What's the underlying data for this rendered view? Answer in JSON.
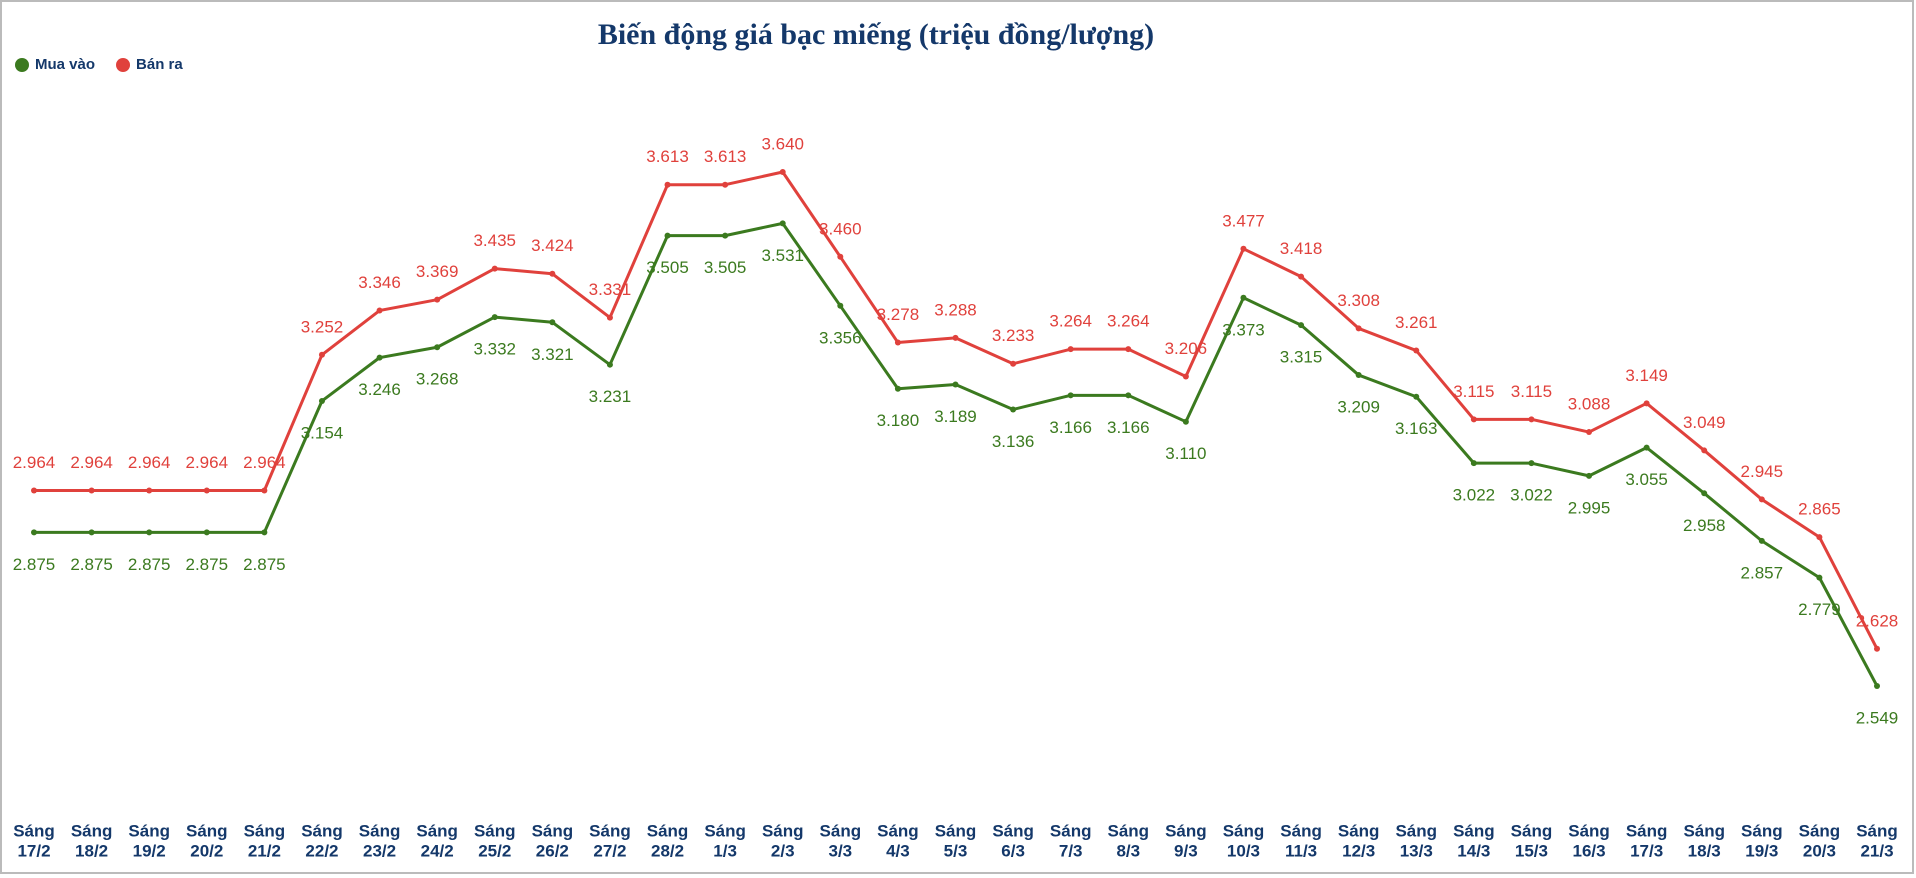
{
  "chart_data": {
    "type": "line",
    "title": "Biến động giá bạc miếng (triệu đồng/lượng)",
    "categories": [
      [
        "Sáng",
        "17/2"
      ],
      [
        "Sáng",
        "18/2"
      ],
      [
        "Sáng",
        "19/2"
      ],
      [
        "Sáng",
        "20/2"
      ],
      [
        "Sáng",
        "21/2"
      ],
      [
        "Sáng",
        "22/2"
      ],
      [
        "Sáng",
        "23/2"
      ],
      [
        "Sáng",
        "24/2"
      ],
      [
        "Sáng",
        "25/2"
      ],
      [
        "Sáng",
        "26/2"
      ],
      [
        "Sáng",
        "27/2"
      ],
      [
        "Sáng",
        "28/2"
      ],
      [
        "Sáng",
        "1/3"
      ],
      [
        "Sáng",
        "2/3"
      ],
      [
        "Sáng",
        "3/3"
      ],
      [
        "Sáng",
        "4/3"
      ],
      [
        "Sáng",
        "5/3"
      ],
      [
        "Sáng",
        "6/3"
      ],
      [
        "Sáng",
        "7/3"
      ],
      [
        "Sáng",
        "8/3"
      ],
      [
        "Sáng",
        "9/3"
      ],
      [
        "Sáng",
        "10/3"
      ],
      [
        "Sáng",
        "11/3"
      ],
      [
        "Sáng",
        "12/3"
      ],
      [
        "Sáng",
        "13/3"
      ],
      [
        "Sáng",
        "14/3"
      ],
      [
        "Sáng",
        "15/3"
      ],
      [
        "Sáng",
        "16/3"
      ],
      [
        "Sáng",
        "17/3"
      ],
      [
        "Sáng",
        "18/3"
      ],
      [
        "Sáng",
        "19/3"
      ],
      [
        "Sáng",
        "20/3"
      ],
      [
        "Sáng",
        "21/3"
      ]
    ],
    "series": [
      {
        "name": "Mua vào",
        "color": "#3b7a1f",
        "values": [
          2.875,
          2.875,
          2.875,
          2.875,
          2.875,
          3.154,
          3.246,
          3.268,
          3.332,
          3.321,
          3.231,
          3.505,
          3.505,
          3.531,
          3.356,
          3.18,
          3.189,
          3.136,
          3.166,
          3.166,
          3.11,
          3.373,
          3.315,
          3.209,
          3.163,
          3.022,
          3.022,
          2.995,
          3.055,
          2.958,
          2.857,
          2.779,
          2.549
        ],
        "value_labels": [
          "2.875",
          "2.875",
          "2.875",
          "2.875",
          "2.875",
          "3.154",
          "3.246",
          "3.268",
          "3.332",
          "3.321",
          "3.231",
          "3.505",
          "3.505",
          "3.531",
          "3.356",
          "3.180",
          "3.189",
          "3.136",
          "3.166",
          "3.166",
          "3.110",
          "3.373",
          "3.315",
          "3.209",
          "3.163",
          "3.022",
          "3.022",
          "2.995",
          "3.055",
          "2.958",
          "2.857",
          "2.779",
          "2.549"
        ]
      },
      {
        "name": "Bán ra",
        "color": "#e0413c",
        "values": [
          2.964,
          2.964,
          2.964,
          2.964,
          2.964,
          3.252,
          3.346,
          3.369,
          3.435,
          3.424,
          3.331,
          3.613,
          3.613,
          3.64,
          3.46,
          3.278,
          3.288,
          3.233,
          3.264,
          3.264,
          3.206,
          3.477,
          3.418,
          3.308,
          3.261,
          3.115,
          3.115,
          3.088,
          3.149,
          3.049,
          2.945,
          2.865,
          2.628
        ],
        "value_labels": [
          "2.964",
          "2.964",
          "2.964",
          "2.964",
          "2.964",
          "3.252",
          "3.346",
          "3.369",
          "3.435",
          "3.424",
          "3.331",
          "3.613",
          "3.613",
          "3.640",
          "3.460",
          "3.278",
          "3.288",
          "3.233",
          "3.264",
          "3.264",
          "3.206",
          "3.477",
          "3.418",
          "3.308",
          "3.261",
          "3.115",
          "3.115",
          "3.088",
          "3.149",
          "3.049",
          "2.945",
          "2.865",
          "2.628"
        ]
      }
    ],
    "legend": "top-left"
  }
}
